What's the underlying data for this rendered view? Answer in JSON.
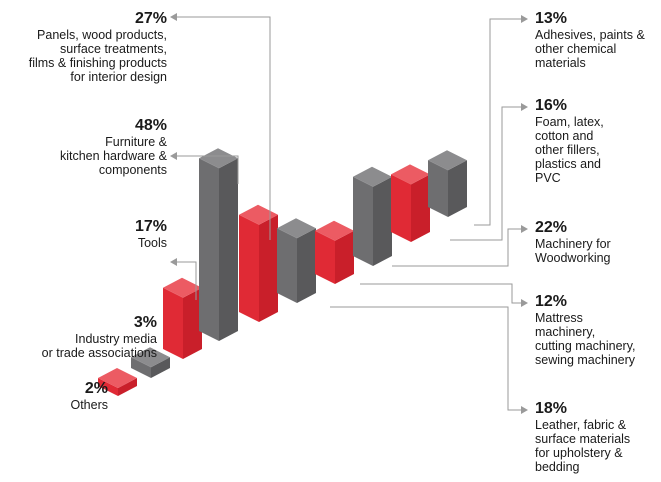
{
  "chart_data": {
    "type": "bar",
    "colors": {
      "red": "#e02a35",
      "grey": "#6e6e70",
      "connector": "#9a9a9a"
    },
    "categories": [
      "Others",
      "Industry media or trade associations",
      "Tools",
      "Furniture & kitchen hardware & components",
      "Panels, wood products, surface treatments, films & finishing products for interior design",
      "Leather, fabric & surface materials for upholstery & bedding",
      "Mattress machinery, cutting machinery, sewing machinery",
      "Machinery for Woodworking",
      "Foam, latex, cotton and other fillers, plastics and PVC",
      "Adhesives, paints & other chemical materials"
    ],
    "values": [
      2,
      3,
      17,
      48,
      27,
      18,
      12,
      22,
      16,
      13
    ],
    "bar_colors": [
      "red",
      "grey",
      "red",
      "grey",
      "red",
      "grey",
      "red",
      "grey",
      "red",
      "grey"
    ],
    "labels": [
      {
        "pct": "2%",
        "desc": "Others"
      },
      {
        "pct": "3%",
        "desc": "Industry media\nor trade associations"
      },
      {
        "pct": "17%",
        "desc": "Tools"
      },
      {
        "pct": "48%",
        "desc": "Furniture &\nkitchen hardware &\ncomponents"
      },
      {
        "pct": "27%",
        "desc": "Panels, wood products,\nsurface treatments,\nfilms & finishing products\nfor interior design"
      },
      {
        "pct": "18%",
        "desc": "Leather, fabric &\nsurface materials\nfor upholstery &\nbedding"
      },
      {
        "pct": "12%",
        "desc": "Mattress\nmachinery,\ncutting machinery,\nsewing machinery"
      },
      {
        "pct": "22%",
        "desc": "Machinery for\nWoodworking"
      },
      {
        "pct": "16%",
        "desc": "Foam, latex,\ncotton and\nother fillers,\nplastics and\nPVC"
      },
      {
        "pct": "13%",
        "desc": "Adhesives, paints &\nother chemical\nmaterials"
      }
    ]
  }
}
